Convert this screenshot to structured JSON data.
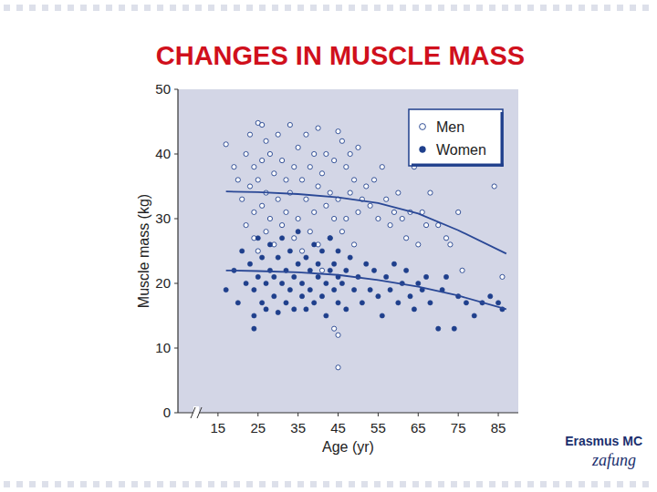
{
  "chart_data": {
    "type": "scatter",
    "title": "CHANGES IN MUSCLE MASS",
    "x_label": "Age (yr)",
    "y_label": "Muscle mass (kg)",
    "xlim": [
      5,
      90
    ],
    "xticks": [
      15,
      25,
      35,
      45,
      55,
      65,
      75,
      85
    ],
    "ylim": [
      0,
      50
    ],
    "yticks": [
      0,
      10,
      20,
      30,
      40,
      50
    ],
    "grid": false,
    "legend": "top-right",
    "series": [
      {
        "name": "Men",
        "color": "#1f3f8c",
        "marker": "circle-open",
        "x": [
          17,
          19,
          20,
          21,
          22,
          22,
          23,
          23,
          24,
          24,
          24,
          25,
          25,
          25,
          26,
          26,
          26,
          27,
          27,
          27,
          28,
          28,
          29,
          29,
          30,
          30,
          31,
          31,
          32,
          32,
          33,
          33,
          34,
          34,
          35,
          35,
          36,
          36,
          37,
          37,
          38,
          38,
          39,
          39,
          40,
          40,
          40,
          41,
          41,
          42,
          42,
          43,
          43,
          44,
          44,
          44,
          45,
          45,
          45,
          45,
          46,
          46,
          47,
          47,
          48,
          48,
          49,
          49,
          50,
          50,
          51,
          52,
          53,
          54,
          55,
          56,
          57,
          58,
          59,
          60,
          61,
          62,
          63,
          64,
          65,
          66,
          67,
          68,
          70,
          72,
          73,
          75,
          76,
          84,
          86
        ],
        "values": [
          41.5,
          38,
          36,
          33,
          40,
          29,
          43,
          35,
          38,
          31,
          27,
          44.8,
          36,
          25,
          44.5,
          39,
          32,
          42,
          34,
          28,
          40,
          30,
          37,
          26,
          43,
          33,
          39,
          29,
          36,
          31,
          44.5,
          34,
          38,
          27,
          41,
          30,
          36,
          25,
          43,
          33,
          38,
          28,
          40,
          31,
          44,
          35,
          26,
          37,
          22,
          40,
          32,
          34,
          27,
          39,
          30,
          13,
          43.5,
          33,
          12,
          7,
          42,
          28,
          38,
          30,
          40,
          34,
          36,
          26,
          41,
          31,
          33,
          35,
          32,
          36,
          30,
          38,
          33,
          29,
          31,
          34,
          30,
          27,
          31,
          38,
          26,
          31,
          29,
          34,
          29,
          27,
          26,
          31,
          22,
          35,
          21
        ],
        "trend": {
          "x": [
            17,
            25,
            35,
            45,
            55,
            65,
            75,
            87
          ],
          "values": [
            34.2,
            34.1,
            33.8,
            33.3,
            32.4,
            30.8,
            28.2,
            24.6
          ]
        }
      },
      {
        "name": "Women",
        "color": "#1f3f8c",
        "marker": "circle",
        "x": [
          17,
          19,
          20,
          21,
          22,
          23,
          24,
          24,
          24,
          25,
          25,
          26,
          26,
          27,
          27,
          28,
          28,
          29,
          29,
          30,
          30,
          31,
          31,
          32,
          32,
          33,
          33,
          34,
          34,
          35,
          35,
          36,
          36,
          37,
          37,
          38,
          38,
          39,
          39,
          40,
          40,
          41,
          41,
          42,
          42,
          43,
          43,
          44,
          44,
          45,
          45,
          45,
          46,
          47,
          47,
          48,
          49,
          50,
          51,
          52,
          53,
          54,
          55,
          56,
          57,
          58,
          59,
          60,
          61,
          62,
          63,
          64,
          65,
          66,
          67,
          68,
          70,
          71,
          72,
          74,
          75,
          77,
          79,
          81,
          83,
          85,
          86
        ],
        "values": [
          19,
          22,
          17,
          25,
          20,
          23,
          15,
          19,
          13,
          27,
          21,
          17,
          24,
          20,
          16,
          22,
          26,
          18,
          21,
          24,
          15.5,
          20,
          27,
          17,
          22,
          25,
          19,
          21,
          16,
          23,
          28,
          18,
          20,
          24,
          16,
          22,
          19,
          26,
          17,
          21,
          23,
          18,
          25,
          20,
          15,
          22,
          27,
          19,
          23,
          17,
          21,
          25,
          20,
          22,
          16,
          24,
          19,
          21,
          17,
          23,
          19,
          22,
          18,
          15,
          21,
          19,
          23,
          17,
          20,
          22,
          18,
          16,
          20,
          19,
          21,
          17,
          13,
          19,
          21,
          13,
          18,
          17,
          15,
          17,
          18,
          17,
          16
        ],
        "trend": {
          "x": [
            17,
            25,
            35,
            45,
            55,
            65,
            75,
            87
          ],
          "values": [
            22,
            21.9,
            21.7,
            21.3,
            20.5,
            19.5,
            18.1,
            16
          ]
        }
      }
    ]
  },
  "logo": {
    "text": "Erasmus MC",
    "script": "zafung"
  }
}
